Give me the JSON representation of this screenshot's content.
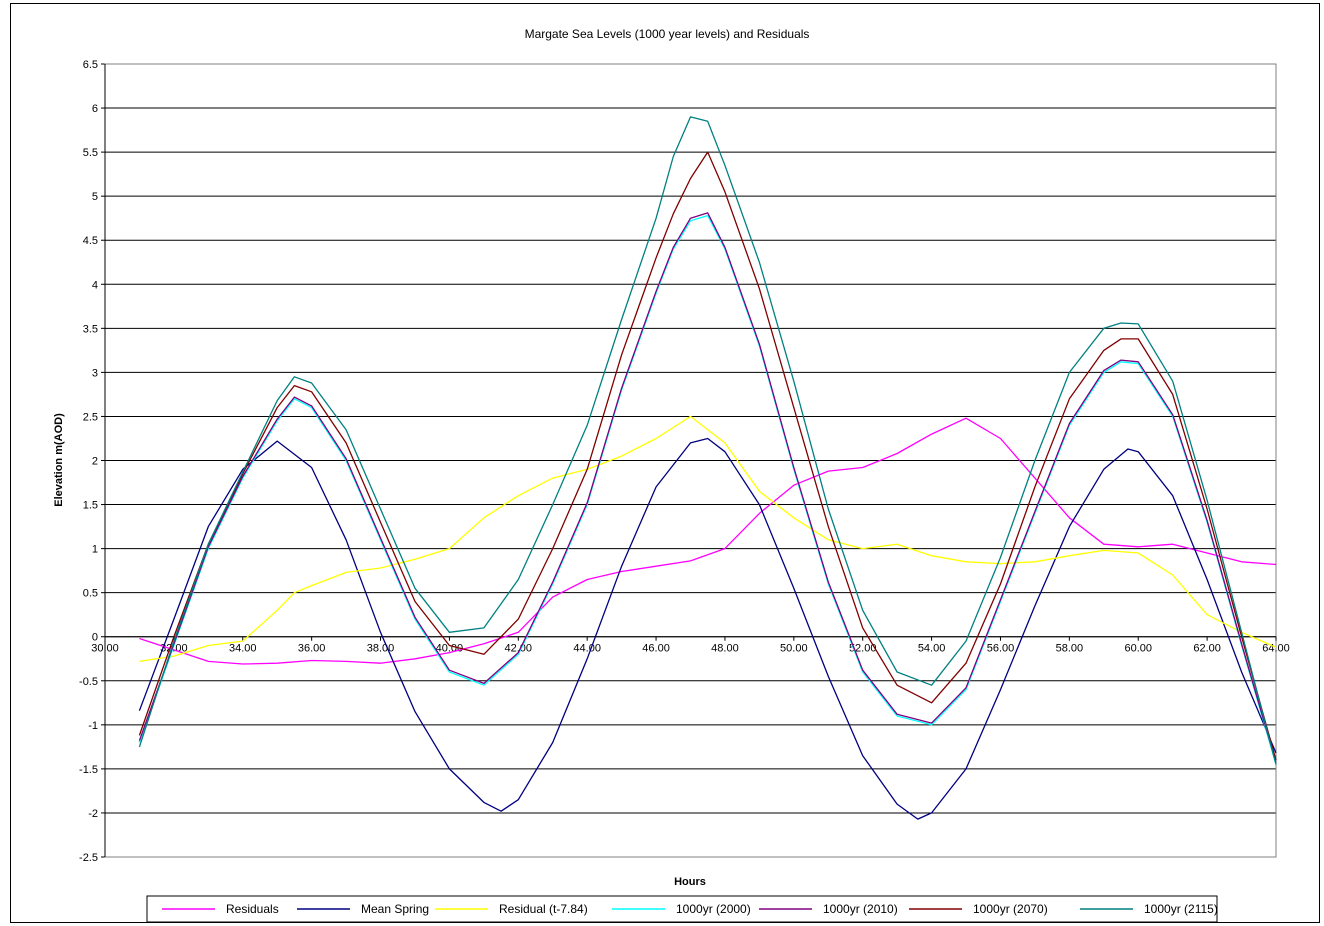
{
  "chart_data": {
    "type": "line",
    "title": "Margate Sea Levels  (1000 year levels) and Residuals",
    "xlabel": "Hours",
    "ylabel": "Elevation m(AOD)",
    "xlim": [
      30,
      64
    ],
    "ylim": [
      -2.5,
      6.5
    ],
    "x_ticks": [
      "30.00",
      "32.00",
      "34.00",
      "36.00",
      "38.00",
      "40.00",
      "42.00",
      "44.00",
      "46.00",
      "48.00",
      "50.00",
      "52.00",
      "54.00",
      "56.00",
      "58.00",
      "60.00",
      "62.00",
      "64.00"
    ],
    "y_ticks": [
      "6.5",
      "6",
      "5.5",
      "5",
      "4.5",
      "4",
      "3.5",
      "3",
      "2.5",
      "2",
      "1.5",
      "1",
      "0.5",
      "0",
      "-0.5",
      "-1",
      "-1.5",
      "-2",
      "-2.5"
    ],
    "grid": true,
    "legend_position": "bottom",
    "series": [
      {
        "name": "Residuals",
        "color": "#FF00FF",
        "points": [
          [
            31,
            -0.02
          ],
          [
            32,
            -0.15
          ],
          [
            33,
            -0.28
          ],
          [
            34,
            -0.31
          ],
          [
            35,
            -0.3
          ],
          [
            36,
            -0.27
          ],
          [
            37,
            -0.28
          ],
          [
            38,
            -0.3
          ],
          [
            39,
            -0.25
          ],
          [
            40,
            -0.18
          ],
          [
            41,
            -0.08
          ],
          [
            42,
            0.05
          ],
          [
            43,
            0.45
          ],
          [
            44,
            0.65
          ],
          [
            45,
            0.74
          ],
          [
            46,
            0.8
          ],
          [
            47,
            0.86
          ],
          [
            48,
            1.0
          ],
          [
            49,
            1.4
          ],
          [
            50,
            1.72
          ],
          [
            51,
            1.88
          ],
          [
            52,
            1.92
          ],
          [
            53,
            2.08
          ],
          [
            54,
            2.3
          ],
          [
            55,
            2.48
          ],
          [
            56,
            2.25
          ],
          [
            57,
            1.8
          ],
          [
            58,
            1.35
          ],
          [
            59,
            1.05
          ],
          [
            60,
            1.02
          ],
          [
            61,
            1.05
          ],
          [
            62,
            0.95
          ],
          [
            63,
            0.85
          ],
          [
            64,
            0.82
          ]
        ]
      },
      {
        "name": "Mean Spring",
        "color": "#000080",
        "points": [
          [
            31,
            -0.84
          ],
          [
            32,
            0.2
          ],
          [
            33,
            1.25
          ],
          [
            34,
            1.9
          ],
          [
            35,
            2.22
          ],
          [
            36,
            1.92
          ],
          [
            37,
            1.1
          ],
          [
            38,
            0.05
          ],
          [
            39,
            -0.85
          ],
          [
            40,
            -1.5
          ],
          [
            41,
            -1.88
          ],
          [
            41.5,
            -1.98
          ],
          [
            42,
            -1.85
          ],
          [
            43,
            -1.2
          ],
          [
            44,
            -0.25
          ],
          [
            45,
            0.8
          ],
          [
            46,
            1.7
          ],
          [
            47,
            2.2
          ],
          [
            47.5,
            2.25
          ],
          [
            48,
            2.1
          ],
          [
            49,
            1.5
          ],
          [
            50,
            0.55
          ],
          [
            51,
            -0.45
          ],
          [
            52,
            -1.35
          ],
          [
            53,
            -1.9
          ],
          [
            53.6,
            -2.07
          ],
          [
            54,
            -2.0
          ],
          [
            55,
            -1.5
          ],
          [
            56,
            -0.6
          ],
          [
            57,
            0.35
          ],
          [
            58,
            1.25
          ],
          [
            59,
            1.9
          ],
          [
            59.7,
            2.13
          ],
          [
            60,
            2.1
          ],
          [
            61,
            1.6
          ],
          [
            62,
            0.65
          ],
          [
            63,
            -0.4
          ],
          [
            64,
            -1.32
          ]
        ]
      },
      {
        "name": "Residual (t-7.84)",
        "color": "#FFFF00",
        "points": [
          [
            31,
            -0.28
          ],
          [
            32,
            -0.22
          ],
          [
            33,
            -0.1
          ],
          [
            34,
            -0.05
          ],
          [
            35,
            0.3
          ],
          [
            35.5,
            0.5
          ],
          [
            36,
            0.58
          ],
          [
            37,
            0.73
          ],
          [
            38,
            0.78
          ],
          [
            39,
            0.88
          ],
          [
            40,
            1.0
          ],
          [
            41,
            1.35
          ],
          [
            42,
            1.6
          ],
          [
            43,
            1.8
          ],
          [
            44,
            1.9
          ],
          [
            45,
            2.05
          ],
          [
            46,
            2.25
          ],
          [
            47,
            2.5
          ],
          [
            48,
            2.2
          ],
          [
            49,
            1.65
          ],
          [
            50,
            1.35
          ],
          [
            51,
            1.1
          ],
          [
            52,
            1.0
          ],
          [
            53,
            1.05
          ],
          [
            54,
            0.92
          ],
          [
            55,
            0.85
          ],
          [
            56,
            0.83
          ],
          [
            57,
            0.85
          ],
          [
            58,
            0.92
          ],
          [
            59,
            0.98
          ],
          [
            60,
            0.95
          ],
          [
            61,
            0.7
          ],
          [
            62,
            0.25
          ],
          [
            63,
            0.05
          ],
          [
            64,
            -0.12
          ]
        ]
      },
      {
        "name": "1000yr (2000)",
        "color": "#00FFFF",
        "points": [
          [
            31,
            -1.2
          ],
          [
            32,
            -0.1
          ],
          [
            33,
            1.0
          ],
          [
            34,
            1.8
          ],
          [
            35,
            2.45
          ],
          [
            35.5,
            2.7
          ],
          [
            36,
            2.6
          ],
          [
            37,
            2.0
          ],
          [
            38,
            1.1
          ],
          [
            39,
            0.2
          ],
          [
            40,
            -0.4
          ],
          [
            41,
            -0.55
          ],
          [
            42,
            -0.2
          ],
          [
            43,
            0.6
          ],
          [
            44,
            1.5
          ],
          [
            45,
            2.8
          ],
          [
            46,
            3.9
          ],
          [
            46.5,
            4.4
          ],
          [
            47,
            4.72
          ],
          [
            47.5,
            4.78
          ],
          [
            48,
            4.4
          ],
          [
            49,
            3.3
          ],
          [
            50,
            1.9
          ],
          [
            51,
            0.6
          ],
          [
            52,
            -0.4
          ],
          [
            53,
            -0.9
          ],
          [
            54,
            -1.0
          ],
          [
            55,
            -0.6
          ],
          [
            56,
            0.4
          ],
          [
            57,
            1.4
          ],
          [
            58,
            2.4
          ],
          [
            59,
            3.0
          ],
          [
            59.5,
            3.12
          ],
          [
            60,
            3.1
          ],
          [
            61,
            2.5
          ],
          [
            62,
            1.3
          ],
          [
            63,
            -0.1
          ],
          [
            64,
            -1.45
          ]
        ]
      },
      {
        "name": "1000yr (2010)",
        "color": "#800080",
        "points": [
          [
            31,
            -1.18
          ],
          [
            32,
            -0.08
          ],
          [
            33,
            1.02
          ],
          [
            34,
            1.82
          ],
          [
            35,
            2.47
          ],
          [
            35.5,
            2.72
          ],
          [
            36,
            2.62
          ],
          [
            37,
            2.02
          ],
          [
            38,
            1.12
          ],
          [
            39,
            0.22
          ],
          [
            40,
            -0.38
          ],
          [
            41,
            -0.53
          ],
          [
            42,
            -0.18
          ],
          [
            43,
            0.62
          ],
          [
            44,
            1.52
          ],
          [
            45,
            2.82
          ],
          [
            46,
            3.92
          ],
          [
            46.5,
            4.42
          ],
          [
            47,
            4.75
          ],
          [
            47.5,
            4.81
          ],
          [
            48,
            4.42
          ],
          [
            49,
            3.32
          ],
          [
            50,
            1.92
          ],
          [
            51,
            0.62
          ],
          [
            52,
            -0.38
          ],
          [
            53,
            -0.88
          ],
          [
            54,
            -0.98
          ],
          [
            55,
            -0.58
          ],
          [
            56,
            0.42
          ],
          [
            57,
            1.42
          ],
          [
            58,
            2.42
          ],
          [
            59,
            3.02
          ],
          [
            59.5,
            3.14
          ],
          [
            60,
            3.12
          ],
          [
            61,
            2.52
          ],
          [
            62,
            1.32
          ],
          [
            63,
            -0.08
          ],
          [
            64,
            -1.43
          ]
        ]
      },
      {
        "name": "1000yr (2070)",
        "color": "#800000",
        "points": [
          [
            31,
            -1.12
          ],
          [
            32,
            0.0
          ],
          [
            33,
            1.05
          ],
          [
            34,
            1.85
          ],
          [
            35,
            2.6
          ],
          [
            35.5,
            2.85
          ],
          [
            36,
            2.78
          ],
          [
            37,
            2.2
          ],
          [
            38,
            1.3
          ],
          [
            39,
            0.4
          ],
          [
            40,
            -0.1
          ],
          [
            41,
            -0.2
          ],
          [
            42,
            0.2
          ],
          [
            43,
            1.0
          ],
          [
            44,
            1.9
          ],
          [
            45,
            3.2
          ],
          [
            46,
            4.3
          ],
          [
            46.5,
            4.8
          ],
          [
            47,
            5.2
          ],
          [
            47.5,
            5.5
          ],
          [
            48,
            5.05
          ],
          [
            49,
            3.95
          ],
          [
            50,
            2.6
          ],
          [
            51,
            1.25
          ],
          [
            52,
            0.1
          ],
          [
            53,
            -0.55
          ],
          [
            54,
            -0.75
          ],
          [
            55,
            -0.3
          ],
          [
            56,
            0.6
          ],
          [
            57,
            1.7
          ],
          [
            58,
            2.7
          ],
          [
            59,
            3.25
          ],
          [
            59.5,
            3.38
          ],
          [
            60,
            3.38
          ],
          [
            61,
            2.75
          ],
          [
            62,
            1.45
          ],
          [
            63,
            0.0
          ],
          [
            64,
            -1.4
          ]
        ]
      },
      {
        "name": "1000yr (2115)",
        "color": "#008080",
        "points": [
          [
            31,
            -1.25
          ],
          [
            32,
            -0.05
          ],
          [
            33,
            1.05
          ],
          [
            34,
            1.87
          ],
          [
            35,
            2.68
          ],
          [
            35.5,
            2.95
          ],
          [
            36,
            2.88
          ],
          [
            37,
            2.35
          ],
          [
            38,
            1.45
          ],
          [
            39,
            0.55
          ],
          [
            40,
            0.05
          ],
          [
            41,
            0.1
          ],
          [
            42,
            0.65
          ],
          [
            43,
            1.5
          ],
          [
            44,
            2.4
          ],
          [
            45,
            3.6
          ],
          [
            46,
            4.75
          ],
          [
            46.5,
            5.45
          ],
          [
            47,
            5.9
          ],
          [
            47.5,
            5.85
          ],
          [
            48,
            5.35
          ],
          [
            49,
            4.25
          ],
          [
            50,
            2.9
          ],
          [
            51,
            1.45
          ],
          [
            52,
            0.3
          ],
          [
            53,
            -0.4
          ],
          [
            54,
            -0.55
          ],
          [
            55,
            -0.05
          ],
          [
            56,
            0.9
          ],
          [
            57,
            2.0
          ],
          [
            58,
            3.0
          ],
          [
            59,
            3.5
          ],
          [
            59.5,
            3.56
          ],
          [
            60,
            3.55
          ],
          [
            61,
            2.9
          ],
          [
            62,
            1.55
          ],
          [
            63,
            0.05
          ],
          [
            64,
            -1.45
          ]
        ]
      }
    ]
  }
}
